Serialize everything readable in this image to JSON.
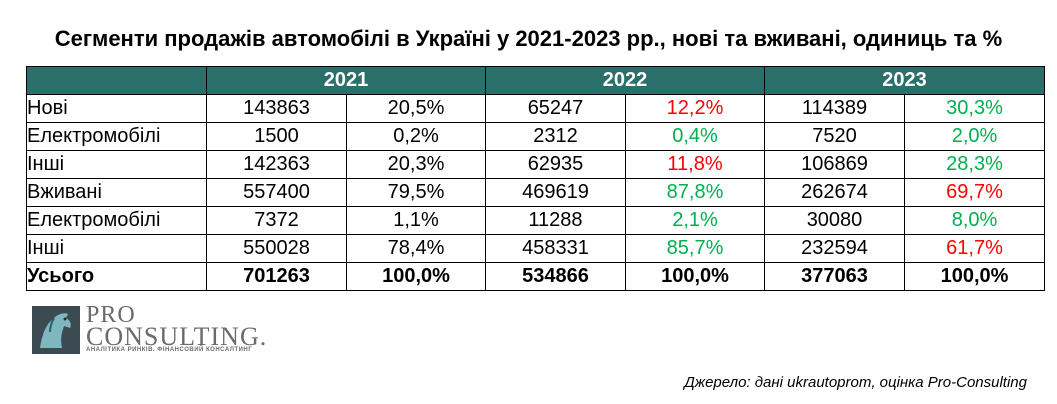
{
  "title": "Сегменти продажів автомобілі в Україні у 2021-2023 рр., нові та вживані, одиниць та %",
  "table": {
    "years": [
      "2021",
      "2022",
      "2023"
    ],
    "rows": [
      {
        "label": "Нові",
        "cells": [
          {
            "n": "143863",
            "p": "20,5%",
            "color": "black"
          },
          {
            "n": "65247",
            "p": "12,2%",
            "color": "red"
          },
          {
            "n": "114389",
            "p": "30,3%",
            "color": "green"
          }
        ]
      },
      {
        "label": "Електромобілі",
        "cells": [
          {
            "n": "1500",
            "p": "0,2%",
            "color": "black"
          },
          {
            "n": "2312",
            "p": "0,4%",
            "color": "green"
          },
          {
            "n": "7520",
            "p": "2,0%",
            "color": "green"
          }
        ]
      },
      {
        "label": "Інші",
        "cells": [
          {
            "n": "142363",
            "p": "20,3%",
            "color": "black"
          },
          {
            "n": "62935",
            "p": "11,8%",
            "color": "red"
          },
          {
            "n": "106869",
            "p": "28,3%",
            "color": "green"
          }
        ]
      },
      {
        "label": "Вживані",
        "cells": [
          {
            "n": "557400",
            "p": "79,5%",
            "color": "black"
          },
          {
            "n": "469619",
            "p": "87,8%",
            "color": "green"
          },
          {
            "n": "262674",
            "p": "69,7%",
            "color": "red"
          }
        ]
      },
      {
        "label": "Електромобілі",
        "cells": [
          {
            "n": "7372",
            "p": "1,1%",
            "color": "black"
          },
          {
            "n": "11288",
            "p": "2,1%",
            "color": "green"
          },
          {
            "n": "30080",
            "p": "8,0%",
            "color": "green"
          }
        ]
      },
      {
        "label": "Інші",
        "cells": [
          {
            "n": "550028",
            "p": "78,4%",
            "color": "black"
          },
          {
            "n": "458331",
            "p": "85,7%",
            "color": "green"
          },
          {
            "n": "232594",
            "p": "61,7%",
            "color": "red"
          }
        ]
      },
      {
        "label": "Усього",
        "cells": [
          {
            "n": "701263",
            "p": "100,0%",
            "color": "black"
          },
          {
            "n": "534866",
            "p": "100,0%",
            "color": "black"
          },
          {
            "n": "377063",
            "p": "100,0%",
            "color": "black"
          }
        ]
      }
    ]
  },
  "logo": {
    "line1": "PRO",
    "line2": "CONSULTING.",
    "tagline": "АНАЛІТИКА РИНКІВ. ФІНАНСОВИЙ КОНСАЛТИНГ"
  },
  "source": "Джерело: дані ukrautoprom, оцінка Pro-Consulting",
  "colors": {
    "header_bg": "#2b6f6a",
    "red": "#ff0000",
    "green": "#00b050"
  }
}
